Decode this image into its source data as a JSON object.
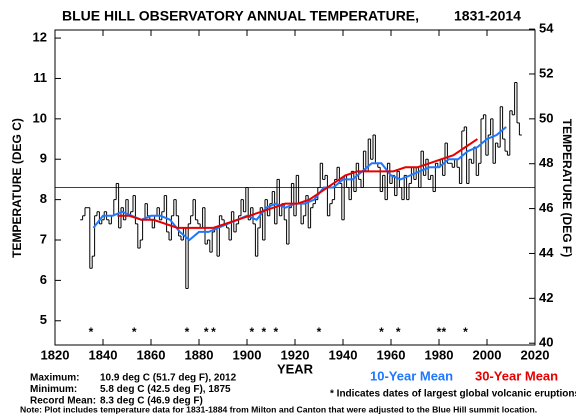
{
  "chart_data": {
    "type": "line",
    "title": "BLUE HILL OBSERVATORY ANNUAL TEMPERATURE,",
    "title_period": "1831-2014",
    "x_label": "YEAR",
    "y_label": "TEMPERATURE (DEG C)",
    "y2_label": "TEMPERATURE (DEG F)",
    "xlim": [
      1820,
      2020
    ],
    "xticks": [
      1820,
      1840,
      1860,
      1880,
      1900,
      1920,
      1940,
      1960,
      1980,
      2000,
      2020
    ],
    "ylim": [
      4.4,
      12.2
    ],
    "yticks": [
      5,
      6,
      7,
      8,
      9,
      10,
      11,
      12
    ],
    "y2lim": [
      39.92,
      53.96
    ],
    "y2ticks": [
      40,
      42,
      44,
      46,
      48,
      50,
      52,
      54
    ],
    "annual": {
      "color": "#000000",
      "x": [
        1831,
        1832,
        1833,
        1834,
        1835,
        1836,
        1837,
        1838,
        1839,
        1840,
        1841,
        1842,
        1843,
        1844,
        1845,
        1846,
        1847,
        1848,
        1849,
        1850,
        1851,
        1852,
        1853,
        1854,
        1855,
        1856,
        1857,
        1858,
        1859,
        1860,
        1861,
        1862,
        1863,
        1864,
        1865,
        1866,
        1867,
        1868,
        1869,
        1870,
        1871,
        1872,
        1873,
        1874,
        1875,
        1876,
        1877,
        1878,
        1879,
        1880,
        1881,
        1882,
        1883,
        1884,
        1885,
        1886,
        1887,
        1888,
        1889,
        1890,
        1891,
        1892,
        1893,
        1894,
        1895,
        1896,
        1897,
        1898,
        1899,
        1900,
        1901,
        1902,
        1903,
        1904,
        1905,
        1906,
        1907,
        1908,
        1909,
        1910,
        1911,
        1912,
        1913,
        1914,
        1915,
        1916,
        1917,
        1918,
        1919,
        1920,
        1921,
        1922,
        1923,
        1924,
        1925,
        1926,
        1927,
        1928,
        1929,
        1930,
        1931,
        1932,
        1933,
        1934,
        1935,
        1936,
        1937,
        1938,
        1939,
        1940,
        1941,
        1942,
        1943,
        1944,
        1945,
        1946,
        1947,
        1948,
        1949,
        1950,
        1951,
        1952,
        1953,
        1954,
        1955,
        1956,
        1957,
        1958,
        1959,
        1960,
        1961,
        1962,
        1963,
        1964,
        1965,
        1966,
        1967,
        1968,
        1969,
        1970,
        1971,
        1972,
        1973,
        1974,
        1975,
        1976,
        1977,
        1978,
        1979,
        1980,
        1981,
        1982,
        1983,
        1984,
        1985,
        1986,
        1987,
        1988,
        1989,
        1990,
        1991,
        1992,
        1993,
        1994,
        1995,
        1996,
        1997,
        1998,
        1999,
        2000,
        2001,
        2002,
        2003,
        2004,
        2005,
        2006,
        2007,
        2008,
        2009,
        2010,
        2011,
        2012,
        2013,
        2014
      ],
      "values": [
        7.5,
        7.6,
        7.8,
        7.8,
        6.3,
        6.6,
        7.6,
        7.7,
        7.4,
        7.5,
        7.7,
        7.5,
        7.4,
        7.6,
        8.0,
        8.4,
        7.3,
        7.8,
        7.5,
        8.0,
        7.6,
        7.7,
        8.1,
        7.4,
        6.8,
        7.0,
        7.5,
        7.9,
        7.6,
        7.5,
        7.3,
        7.6,
        7.8,
        7.5,
        7.7,
        8.1,
        7.2,
        7.0,
        7.6,
        8.0,
        7.6,
        7.1,
        7.0,
        7.3,
        5.8,
        7.4,
        7.6,
        8.0,
        7.5,
        7.4,
        7.3,
        7.8,
        6.9,
        7.0,
        6.7,
        7.2,
        7.3,
        6.6,
        7.6,
        7.5,
        7.4,
        7.3,
        7.0,
        7.7,
        7.2,
        7.4,
        7.6,
        8.0,
        7.7,
        8.3,
        7.5,
        7.8,
        7.4,
        6.6,
        7.3,
        7.8,
        7.0,
        8.0,
        7.6,
        7.9,
        8.2,
        7.4,
        8.5,
        7.6,
        7.9,
        7.5,
        6.9,
        7.8,
        8.4,
        7.6,
        8.6,
        7.9,
        7.4,
        7.6,
        8.1,
        7.3,
        7.8,
        7.9,
        8.0,
        8.3,
        8.9,
        8.5,
        8.6,
        7.6,
        7.9,
        8.0,
        8.5,
        8.8,
        8.4,
        7.5,
        8.6,
        8.3,
        8.0,
        8.7,
        8.2,
        8.9,
        8.5,
        8.3,
        9.2,
        8.7,
        9.5,
        9.0,
        9.6,
        8.9,
        8.8,
        8.2,
        8.6,
        8.0,
        8.9,
        8.4,
        8.6,
        8.1,
        8.7,
        8.3,
        8.0,
        8.6,
        8.0,
        8.4,
        8.8,
        8.5,
        8.8,
        8.3,
        9.2,
        8.6,
        9.0,
        8.5,
        8.6,
        8.2,
        8.9,
        8.8,
        9.0,
        8.6,
        9.4,
        8.9,
        8.9,
        8.8,
        9.0,
        8.8,
        8.4,
        9.7,
        9.8,
        8.4,
        9.0,
        8.9,
        9.3,
        8.6,
        8.9,
        10.0,
        10.1,
        9.1,
        9.6,
        10.0,
        8.9,
        9.4,
        9.3,
        10.3,
        9.5,
        9.2,
        9.1,
        10.2,
        10.1,
        10.9,
        9.9,
        9.6
      ]
    },
    "series": [
      {
        "name": "10-Year Mean",
        "color": "#1e78ff",
        "x": [
          1836,
          1840,
          1844,
          1848,
          1852,
          1856,
          1860,
          1864,
          1868,
          1872,
          1876,
          1880,
          1884,
          1888,
          1892,
          1896,
          1900,
          1904,
          1908,
          1912,
          1916,
          1920,
          1924,
          1928,
          1932,
          1936,
          1940,
          1944,
          1948,
          1952,
          1956,
          1960,
          1964,
          1968,
          1972,
          1976,
          1980,
          1984,
          1988,
          1992,
          1996,
          2000,
          2004,
          2008
        ],
        "values": [
          7.3,
          7.6,
          7.6,
          7.7,
          7.6,
          7.5,
          7.6,
          7.6,
          7.5,
          7.2,
          7.0,
          7.2,
          7.2,
          7.3,
          7.4,
          7.5,
          7.6,
          7.5,
          7.8,
          7.9,
          7.8,
          7.9,
          7.9,
          8.0,
          8.3,
          8.3,
          8.5,
          8.5,
          8.7,
          8.9,
          8.9,
          8.6,
          8.5,
          8.6,
          8.7,
          8.8,
          8.8,
          9.0,
          9.0,
          9.2,
          9.3,
          9.5,
          9.6,
          9.8
        ]
      },
      {
        "name": "30-Year Mean",
        "color": "#e60000",
        "x": [
          1846,
          1851,
          1856,
          1861,
          1866,
          1871,
          1876,
          1881,
          1886,
          1891,
          1896,
          1901,
          1906,
          1911,
          1916,
          1921,
          1926,
          1931,
          1936,
          1941,
          1946,
          1951,
          1956,
          1961,
          1966,
          1971,
          1976,
          1981,
          1986,
          1991,
          1996
        ],
        "values": [
          7.6,
          7.6,
          7.5,
          7.5,
          7.4,
          7.3,
          7.3,
          7.3,
          7.3,
          7.4,
          7.5,
          7.6,
          7.7,
          7.8,
          7.9,
          7.9,
          8.0,
          8.2,
          8.4,
          8.6,
          8.7,
          8.7,
          8.7,
          8.7,
          8.8,
          8.8,
          8.9,
          9.0,
          9.1,
          9.3,
          9.5
        ]
      }
    ],
    "record_mean": 8.3,
    "volcanic_marker": "*",
    "volcanic_years": [
      1835,
      1853,
      1875,
      1883,
      1886,
      1902,
      1907,
      1912,
      1930,
      1956,
      1963,
      1980,
      1982,
      1991
    ],
    "volcanic_note": "* Indicates dates of largest global volcanic eruptions.",
    "stats": [
      {
        "label": "Maximum:",
        "text": "10.9 deg C (51.7 deg F), 2012"
      },
      {
        "label": "Minimum:",
        "text": "5.8 deg C (42.5 deg F), 1875"
      },
      {
        "label": "Record Mean:",
        "text": "8.3 deg C (46.9 deg F)"
      }
    ],
    "note": "Note: Plot includes temperature data for 1831-1884 from Milton and Canton that were adjusted to the Blue Hill summit location."
  }
}
